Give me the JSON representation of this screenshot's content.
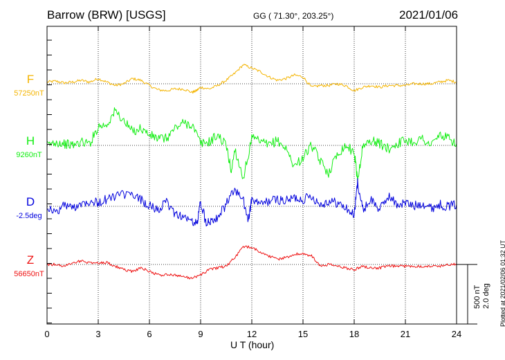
{
  "header": {
    "title": "Barrow (BRW)  [USGS]",
    "coords": "GG ( 71.30°, 203.25°)",
    "date": "2021/01/06"
  },
  "footer": {
    "xlabel": "U T (hour)",
    "plotted": "Plotted at 2021/02/06 01:32 UT"
  },
  "scale": {
    "nt": "500 nT",
    "deg": "2.0 deg"
  },
  "chart_data": {
    "type": "line",
    "title": "Barrow (BRW)  [USGS]",
    "xlabel": "U T (hour)",
    "xlim": [
      0,
      24
    ],
    "xticks": [
      0,
      3,
      6,
      9,
      12,
      15,
      18,
      21,
      24
    ],
    "grid": true,
    "scale_bar": "500 nT / 2.0 deg",
    "series": [
      {
        "name": "F",
        "baseline": "57250nT",
        "color": "#f4b400",
        "x": [
          0,
          0.5,
          1,
          1.5,
          2,
          2.5,
          3,
          3.5,
          4,
          4.5,
          5,
          5.5,
          6,
          6.5,
          7,
          7.5,
          8,
          8.5,
          8.75,
          9,
          9.5,
          10,
          10.5,
          11,
          11.5,
          12,
          12.5,
          13,
          13.5,
          14,
          14.5,
          15,
          15.5,
          16,
          16.5,
          17,
          17.5,
          18,
          18.5,
          19,
          19.5,
          20,
          20.5,
          21,
          21.5,
          22,
          22.5,
          23,
          23.5,
          24
        ],
        "y": [
          10,
          15,
          5,
          10,
          20,
          10,
          30,
          10,
          -10,
          0,
          30,
          20,
          -10,
          -35,
          -40,
          -30,
          -30,
          -50,
          -40,
          -20,
          -30,
          -10,
          20,
          60,
          110,
          90,
          70,
          40,
          20,
          30,
          50,
          40,
          -20,
          -10,
          -10,
          0,
          -10,
          -40,
          -20,
          -10,
          -20,
          -10,
          -10,
          -10,
          0,
          0,
          0,
          10,
          20,
          10
        ]
      },
      {
        "name": "H",
        "baseline": "9260nT",
        "color": "#11ee11",
        "x": [
          0,
          0.5,
          1,
          1.5,
          2,
          2.5,
          3,
          3.5,
          4,
          4.5,
          5,
          5.5,
          6,
          6.5,
          7,
          7.5,
          8,
          8.5,
          9,
          9.5,
          10,
          10.5,
          10.8,
          11,
          11.5,
          12,
          12.5,
          13,
          13.5,
          14,
          14.5,
          15,
          15.5,
          16,
          16.5,
          17,
          17.5,
          18,
          18.2,
          18.5,
          19,
          19.5,
          20,
          20.5,
          21,
          21.5,
          22,
          22.5,
          23,
          23.5,
          24
        ],
        "y": [
          0,
          20,
          10,
          0,
          20,
          10,
          110,
          120,
          200,
          140,
          80,
          100,
          60,
          40,
          40,
          100,
          130,
          120,
          10,
          20,
          60,
          0,
          -150,
          -20,
          -190,
          40,
          20,
          0,
          30,
          -20,
          -120,
          -70,
          0,
          -90,
          -160,
          -50,
          0,
          -40,
          -200,
          -10,
          30,
          10,
          -20,
          10,
          30,
          20,
          40,
          0,
          60,
          40,
          10
        ]
      },
      {
        "name": "D",
        "baseline": "-2.5deg",
        "color": "#0000dd",
        "x": [
          0,
          0.5,
          1,
          1.5,
          2,
          2.5,
          3,
          3.5,
          4,
          4.5,
          5,
          5.5,
          6,
          6.5,
          7,
          7.5,
          8,
          8.5,
          8.8,
          9,
          9.3,
          9.6,
          10,
          10.5,
          11,
          11.5,
          11.8,
          12,
          12.5,
          13,
          13.5,
          14,
          14.5,
          15,
          15.5,
          16,
          16.5,
          17,
          17.5,
          18,
          18.2,
          18.5,
          19,
          19.5,
          20,
          20.5,
          21,
          21.5,
          22,
          22.5,
          23,
          23.5,
          24
        ],
        "y": [
          0,
          -40,
          10,
          -10,
          20,
          30,
          20,
          40,
          60,
          70,
          60,
          40,
          0,
          -20,
          20,
          -40,
          -60,
          -90,
          -100,
          30,
          -90,
          -80,
          -60,
          10,
          100,
          30,
          -80,
          40,
          10,
          30,
          40,
          30,
          50,
          40,
          60,
          10,
          30,
          20,
          -10,
          -50,
          140,
          -20,
          40,
          -20,
          60,
          10,
          20,
          0,
          20,
          -10,
          10,
          0,
          10
        ]
      },
      {
        "name": "Z",
        "baseline": "56650nT",
        "color": "#ee1111",
        "x": [
          0,
          0.5,
          1,
          1.5,
          2,
          2.5,
          3,
          3.5,
          4,
          4.5,
          5,
          5.5,
          6,
          6.5,
          7,
          7.5,
          8,
          8.5,
          9,
          9.5,
          10,
          10.5,
          11,
          11.5,
          12,
          12.5,
          13,
          13.5,
          14,
          14.5,
          15,
          15.5,
          16,
          16.5,
          17,
          17.5,
          18,
          18.5,
          19,
          19.5,
          20,
          20.5,
          21,
          21.5,
          22,
          22.5,
          23,
          23.5,
          24
        ],
        "y": [
          0,
          0,
          -10,
          10,
          20,
          10,
          10,
          10,
          -10,
          -30,
          -40,
          -20,
          -40,
          -60,
          -60,
          -60,
          -70,
          -80,
          -60,
          -30,
          -20,
          -10,
          40,
          100,
          100,
          70,
          50,
          30,
          40,
          60,
          60,
          50,
          -10,
          0,
          -10,
          -20,
          -30,
          -10,
          -20,
          -20,
          -10,
          -10,
          -10,
          -10,
          -10,
          -10,
          -10,
          0,
          0
        ]
      }
    ]
  }
}
